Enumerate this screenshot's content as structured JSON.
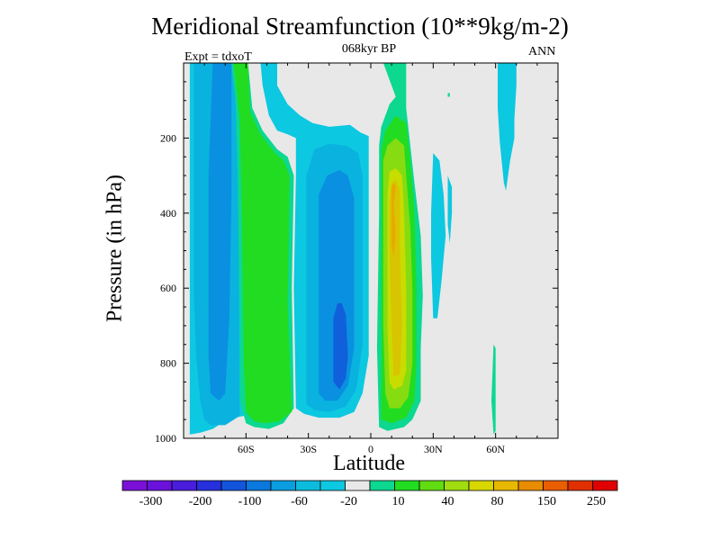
{
  "chart_data": {
    "type": "heatmap",
    "title": "Meridional Streamfunction (10**9kg/m-2)",
    "subtitle": "068kyr BP",
    "left_note": "Expt = tdxoT",
    "right_note": "ANN",
    "xlabel": "Latitude",
    "ylabel": "Pressure (in hPa)",
    "x_range": [
      -90,
      90
    ],
    "y_range": [
      1000,
      0
    ],
    "x_ticks": [
      {
        "value": -60,
        "label": "60S"
      },
      {
        "value": -30,
        "label": "30S"
      },
      {
        "value": 0,
        "label": "0"
      },
      {
        "value": 30,
        "label": "30N"
      },
      {
        "value": 60,
        "label": "60N"
      }
    ],
    "y_ticks": [
      {
        "value": 200,
        "label": "200"
      },
      {
        "value": 400,
        "label": "400"
      },
      {
        "value": 600,
        "label": "600"
      },
      {
        "value": 800,
        "label": "800"
      },
      {
        "value": 1000,
        "label": "1000"
      }
    ],
    "background_color": "#e8e8e8",
    "colorbar": {
      "labels": [
        "-300",
        "-200",
        "-100",
        "-60",
        "-20",
        "10",
        "40",
        "80",
        "150",
        "250"
      ],
      "colors": [
        "#7b0fd8",
        "#6a12dc",
        "#4a1cdc",
        "#2630dc",
        "#1254dc",
        "#0a78dc",
        "#0a9ee0",
        "#0cbcdc",
        "#0cc8e0",
        "#e8e8e8",
        "#0cd890",
        "#22dc22",
        "#60dc10",
        "#a0dc10",
        "#d8d800",
        "#e8b800",
        "#e88c00",
        "#e85e00",
        "#e03000",
        "#e00000"
      ]
    },
    "contours": [
      {
        "level": -20,
        "color": "#0cc8e0",
        "points": [
          [
            -87,
            1000
          ],
          [
            -87,
            0
          ],
          [
            -61,
            0
          ],
          [
            -61,
            940
          ],
          [
            -69,
            950
          ],
          [
            -76,
            975
          ],
          [
            -82,
            985
          ],
          [
            -87,
            990
          ]
        ]
      },
      {
        "level": -60,
        "color": "#0ab2e0",
        "points": [
          [
            -85,
            620
          ],
          [
            -85,
            0
          ],
          [
            -64,
            0
          ],
          [
            -63,
            940
          ],
          [
            -70,
            965
          ],
          [
            -77,
            965
          ],
          [
            -80,
            950
          ],
          [
            -82,
            900
          ],
          [
            -84,
            780
          ]
        ]
      },
      {
        "level": -100,
        "color": "#0a90e0",
        "points": [
          [
            -77,
            880
          ],
          [
            -78,
            780
          ],
          [
            -78,
            300
          ],
          [
            -76,
            0
          ],
          [
            -67,
            0
          ],
          [
            -67,
            350
          ],
          [
            -68,
            680
          ],
          [
            -70,
            880
          ],
          [
            -73,
            900
          ]
        ]
      },
      {
        "level": -20,
        "color": "#0cc8e0",
        "points": [
          [
            -45,
            0
          ],
          [
            -45,
            60
          ],
          [
            -40,
            110
          ],
          [
            -34,
            140
          ],
          [
            -28,
            160
          ],
          [
            -20,
            170
          ],
          [
            -10,
            165
          ],
          [
            -5,
            185
          ],
          [
            -1,
            195
          ],
          [
            -1,
            780
          ],
          [
            -4,
            880
          ],
          [
            -8,
            930
          ],
          [
            -15,
            945
          ],
          [
            -25,
            945
          ],
          [
            -32,
            935
          ],
          [
            -36,
            920
          ],
          [
            -37,
            600
          ],
          [
            -36,
            300
          ],
          [
            -36,
            200
          ],
          [
            -40,
            190
          ],
          [
            -45,
            180
          ],
          [
            -49,
            140
          ],
          [
            -52,
            60
          ],
          [
            -53,
            0
          ]
        ]
      },
      {
        "level": -60,
        "color": "#0ab2e0",
        "points": [
          [
            -31,
            910
          ],
          [
            -31,
            300
          ],
          [
            -27,
            230
          ],
          [
            -20,
            215
          ],
          [
            -12,
            220
          ],
          [
            -6,
            240
          ],
          [
            -4,
            300
          ],
          [
            -4,
            750
          ],
          [
            -7,
            870
          ],
          [
            -12,
            915
          ],
          [
            -20,
            930
          ],
          [
            -27,
            925
          ]
        ]
      },
      {
        "level": -100,
        "color": "#0a90e0",
        "points": [
          [
            -25,
            880
          ],
          [
            -25,
            350
          ],
          [
            -21,
            300
          ],
          [
            -15,
            285
          ],
          [
            -11,
            300
          ],
          [
            -8,
            360
          ],
          [
            -8,
            760
          ],
          [
            -11,
            860
          ],
          [
            -16,
            900
          ],
          [
            -22,
            900
          ]
        ]
      },
      {
        "level": -200,
        "color": "#1060dc",
        "points": [
          [
            -18,
            850
          ],
          [
            -18,
            680
          ],
          [
            -16,
            640
          ],
          [
            -14,
            640
          ],
          [
            -12,
            670
          ],
          [
            -11,
            780
          ],
          [
            -12,
            840
          ],
          [
            -15,
            870
          ]
        ]
      },
      {
        "level": -20,
        "color": "#0cc8e0",
        "points": [
          [
            30,
            240
          ],
          [
            33,
            260
          ],
          [
            35,
            350
          ],
          [
            36,
            460
          ],
          [
            34,
            580
          ],
          [
            32,
            680
          ],
          [
            30,
            680
          ],
          [
            29,
            520
          ],
          [
            29,
            400
          ]
        ]
      },
      {
        "level": -20,
        "color": "#0cc8e0",
        "points": [
          [
            37,
            300
          ],
          [
            39,
            330
          ],
          [
            39,
            400
          ],
          [
            38,
            480
          ],
          [
            37,
            430
          ]
        ]
      },
      {
        "level": -20,
        "color": "#0cc8e0",
        "points": [
          [
            61,
            0
          ],
          [
            70,
            0
          ],
          [
            70,
            60
          ],
          [
            69,
            150
          ],
          [
            69,
            200
          ],
          [
            67,
            260
          ],
          [
            65,
            340
          ],
          [
            64,
            320
          ],
          [
            62,
            210
          ],
          [
            61,
            120
          ]
        ]
      },
      {
        "level": 10,
        "color": "#0cd890",
        "points": [
          [
            -67,
            0
          ],
          [
            -59,
            0
          ],
          [
            -57,
            120
          ],
          [
            -52,
            180
          ],
          [
            -45,
            230
          ],
          [
            -40,
            250
          ],
          [
            -37,
            300
          ],
          [
            -38,
            600
          ],
          [
            -37,
            920
          ],
          [
            -42,
            960
          ],
          [
            -49,
            975
          ],
          [
            -56,
            970
          ],
          [
            -60,
            960
          ],
          [
            -63,
            900
          ],
          [
            -63,
            700
          ],
          [
            -64,
            300
          ],
          [
            -65,
            100
          ]
        ]
      },
      {
        "level": 40,
        "color": "#22dc22",
        "points": [
          [
            -66,
            0
          ],
          [
            -59,
            0
          ],
          [
            -58,
            130
          ],
          [
            -53,
            190
          ],
          [
            -46,
            240
          ],
          [
            -42,
            260
          ],
          [
            -39,
            300
          ],
          [
            -40,
            640
          ],
          [
            -38,
            930
          ],
          [
            -44,
            955
          ],
          [
            -51,
            960
          ],
          [
            -56,
            955
          ],
          [
            -60,
            930
          ],
          [
            -61,
            800
          ],
          [
            -62,
            400
          ],
          [
            -63,
            150
          ]
        ]
      },
      {
        "level": 10,
        "color": "#0cd890",
        "points": [
          [
            6,
            0
          ],
          [
            17,
            0
          ],
          [
            17,
            120
          ],
          [
            19,
            220
          ],
          [
            21,
            320
          ],
          [
            24,
            460
          ],
          [
            25,
            620
          ],
          [
            24,
            760
          ],
          [
            24,
            900
          ],
          [
            20,
            950
          ],
          [
            16,
            970
          ],
          [
            8,
            980
          ],
          [
            4,
            970
          ],
          [
            3,
            760
          ],
          [
            4,
            400
          ],
          [
            4,
            220
          ],
          [
            5,
            170
          ],
          [
            7,
            140
          ],
          [
            9,
            110
          ],
          [
            12,
            90
          ]
        ]
      },
      {
        "level": 40,
        "color": "#22dc22",
        "points": [
          [
            7,
            180
          ],
          [
            12,
            140
          ],
          [
            17,
            160
          ],
          [
            19,
            260
          ],
          [
            21,
            400
          ],
          [
            22,
            600
          ],
          [
            22,
            800
          ],
          [
            21,
            900
          ],
          [
            17,
            945
          ],
          [
            10,
            960
          ],
          [
            5,
            950
          ],
          [
            5,
            700
          ],
          [
            5,
            400
          ],
          [
            5,
            230
          ]
        ]
      },
      {
        "level": 80,
        "color": "#86dc10",
        "points": [
          [
            8,
            220
          ],
          [
            12,
            200
          ],
          [
            16,
            220
          ],
          [
            17,
            300
          ],
          [
            19,
            440
          ],
          [
            20,
            600
          ],
          [
            20,
            800
          ],
          [
            18,
            890
          ],
          [
            14,
            920
          ],
          [
            9,
            920
          ],
          [
            7,
            880
          ],
          [
            6,
            700
          ],
          [
            6,
            400
          ],
          [
            6,
            260
          ]
        ]
      },
      {
        "level": 150,
        "color": "#c8dc00",
        "points": [
          [
            9,
            290
          ],
          [
            12,
            280
          ],
          [
            15,
            300
          ],
          [
            16,
            400
          ],
          [
            17,
            600
          ],
          [
            17,
            820
          ],
          [
            15,
            860
          ],
          [
            11,
            870
          ],
          [
            9,
            850
          ],
          [
            8,
            700
          ],
          [
            8,
            500
          ],
          [
            8,
            350
          ]
        ]
      },
      {
        "level": 250,
        "color": "#d8c400",
        "points": [
          [
            10,
            320
          ],
          [
            12,
            310
          ],
          [
            14,
            340
          ],
          [
            14,
            500
          ],
          [
            15,
            700
          ],
          [
            14,
            830
          ],
          [
            11,
            835
          ],
          [
            10,
            700
          ],
          [
            9,
            500
          ],
          [
            9,
            380
          ]
        ]
      },
      {
        "level": 300,
        "color": "#e8a800",
        "points": [
          [
            10,
            330
          ],
          [
            11,
            320
          ],
          [
            12,
            330
          ],
          [
            11,
            380
          ],
          [
            12,
            450
          ],
          [
            11,
            520
          ],
          [
            10,
            480
          ],
          [
            10,
            400
          ]
        ]
      },
      {
        "level": 10,
        "color": "#0cd890",
        "points": [
          [
            59,
            750
          ],
          [
            60,
            760
          ],
          [
            60,
            900
          ],
          [
            60,
            980
          ],
          [
            59,
            990
          ],
          [
            58,
            900
          ]
        ]
      },
      {
        "level": 10,
        "color": "#0cd890",
        "points": [
          [
            37,
            80
          ],
          [
            38,
            80
          ],
          [
            38,
            90
          ],
          [
            37,
            90
          ]
        ]
      }
    ]
  }
}
